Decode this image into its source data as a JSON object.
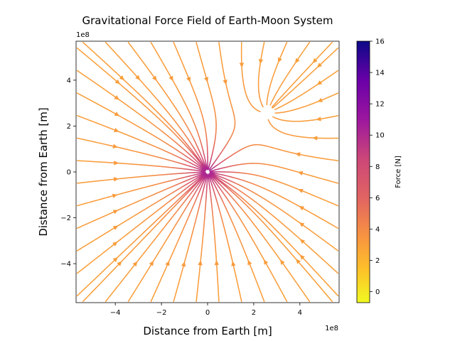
{
  "chart_data": {
    "type": "streamplot",
    "title": "Gravitational Force Field of Earth-Moon System",
    "xlabel": "Distance from Earth [m]",
    "ylabel": "Distance from Earth [m]",
    "x_offset_label": "1e8",
    "y_offset_label": "1e8",
    "xlim": [
      -5.7,
      5.7
    ],
    "ylim": [
      -5.7,
      5.7
    ],
    "x_ticks": [
      -4,
      -2,
      0,
      2,
      4
    ],
    "y_ticks": [
      -4,
      -2,
      0,
      2,
      4
    ],
    "x_tick_labels": [
      "−4",
      "−2",
      "0",
      "2",
      "4"
    ],
    "y_tick_labels": [
      "−4",
      "−2",
      "0",
      "2",
      "4"
    ],
    "bodies": [
      {
        "name": "Earth",
        "x": 0,
        "y": 0
      },
      {
        "name": "Moon",
        "x": 2.6,
        "y": 2.6
      }
    ],
    "field_direction": "toward Earth and Moon (attractive)",
    "colormap": "plasma_r",
    "colorbar": {
      "label": "Force [N]",
      "min": -0.7,
      "max": 16,
      "ticks": [
        0,
        2,
        4,
        6,
        8,
        10,
        12,
        14,
        16
      ],
      "tick_labels": [
        "0",
        "2",
        "4",
        "6",
        "8",
        "10",
        "12",
        "14",
        "16"
      ]
    },
    "grid": false,
    "legend": "none"
  }
}
